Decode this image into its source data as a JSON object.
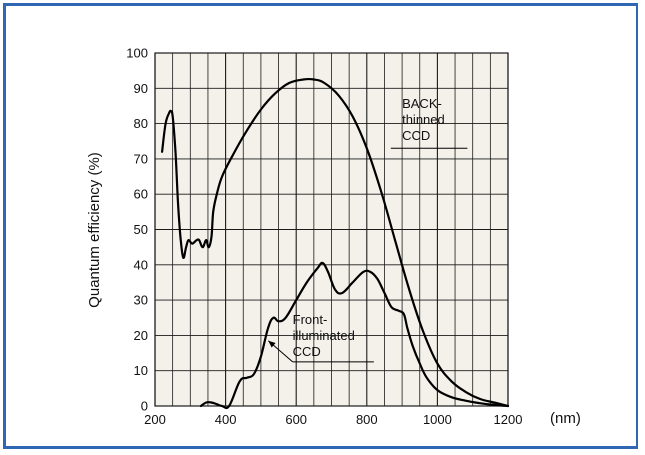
{
  "colors": {
    "frame": "#2f67b5",
    "plot_background": "#f3f1e9",
    "grid": "#1a1a1a",
    "curve": "#000000"
  },
  "chart_data": {
    "type": "line",
    "title": "",
    "xlabel": "(nm)",
    "ylabel": "Quantum efficiency (%)",
    "xlim": [
      200,
      1200
    ],
    "ylim": [
      0,
      100
    ],
    "x_ticks": [
      "200",
      "400",
      "600",
      "800",
      "1000",
      "1200"
    ],
    "y_ticks": [
      "0",
      "10",
      "20",
      "30",
      "40",
      "50",
      "60",
      "70",
      "80",
      "90",
      "100"
    ],
    "grid": true,
    "series": [
      {
        "name": "BACK-thinned CCD",
        "label_lines": [
          "BACK-",
          "thinned",
          "CCD"
        ],
        "x": [
          220,
          230,
          240,
          245,
          250,
          258,
          265,
          272,
          280,
          288,
          295,
          305,
          318,
          325,
          335,
          345,
          352,
          360,
          365,
          375,
          390,
          420,
          460,
          500,
          540,
          580,
          620,
          650,
          680,
          720,
          760,
          800,
          840,
          880,
          920,
          960,
          1000,
          1040,
          1080,
          1120,
          1160,
          1200
        ],
        "values": [
          72,
          80,
          83,
          83.5,
          82,
          72,
          58,
          48,
          42,
          45,
          47,
          46,
          47,
          47,
          45,
          47,
          45,
          48,
          55,
          60,
          65,
          71,
          78,
          84,
          88.5,
          91.5,
          92.5,
          92.5,
          91.5,
          88,
          82,
          73,
          61,
          47,
          33,
          21,
          12,
          7,
          4,
          2,
          1,
          0
        ]
      },
      {
        "name": "Front-illuminated CCD",
        "label_lines": [
          "Front-",
          "illuminated",
          "CCD"
        ],
        "x": [
          330,
          345,
          360,
          375,
          390,
          410,
          440,
          460,
          480,
          500,
          520,
          535,
          550,
          570,
          600,
          630,
          660,
          675,
          690,
          710,
          730,
          760,
          790,
          810,
          830,
          850,
          870,
          890,
          905,
          915,
          930,
          950,
          970,
          1000,
          1040,
          1080,
          1120,
          1160,
          1200
        ],
        "values": [
          0,
          1,
          1,
          0.5,
          0,
          0,
          7,
          8,
          9,
          14,
          22,
          25,
          24,
          25,
          30,
          35,
          39,
          40.5,
          38,
          33,
          32,
          35,
          38,
          38,
          36,
          32,
          28,
          27,
          26,
          22,
          17,
          12,
          8,
          4.5,
          2.5,
          1.5,
          0.8,
          0.3,
          0
        ]
      }
    ]
  }
}
